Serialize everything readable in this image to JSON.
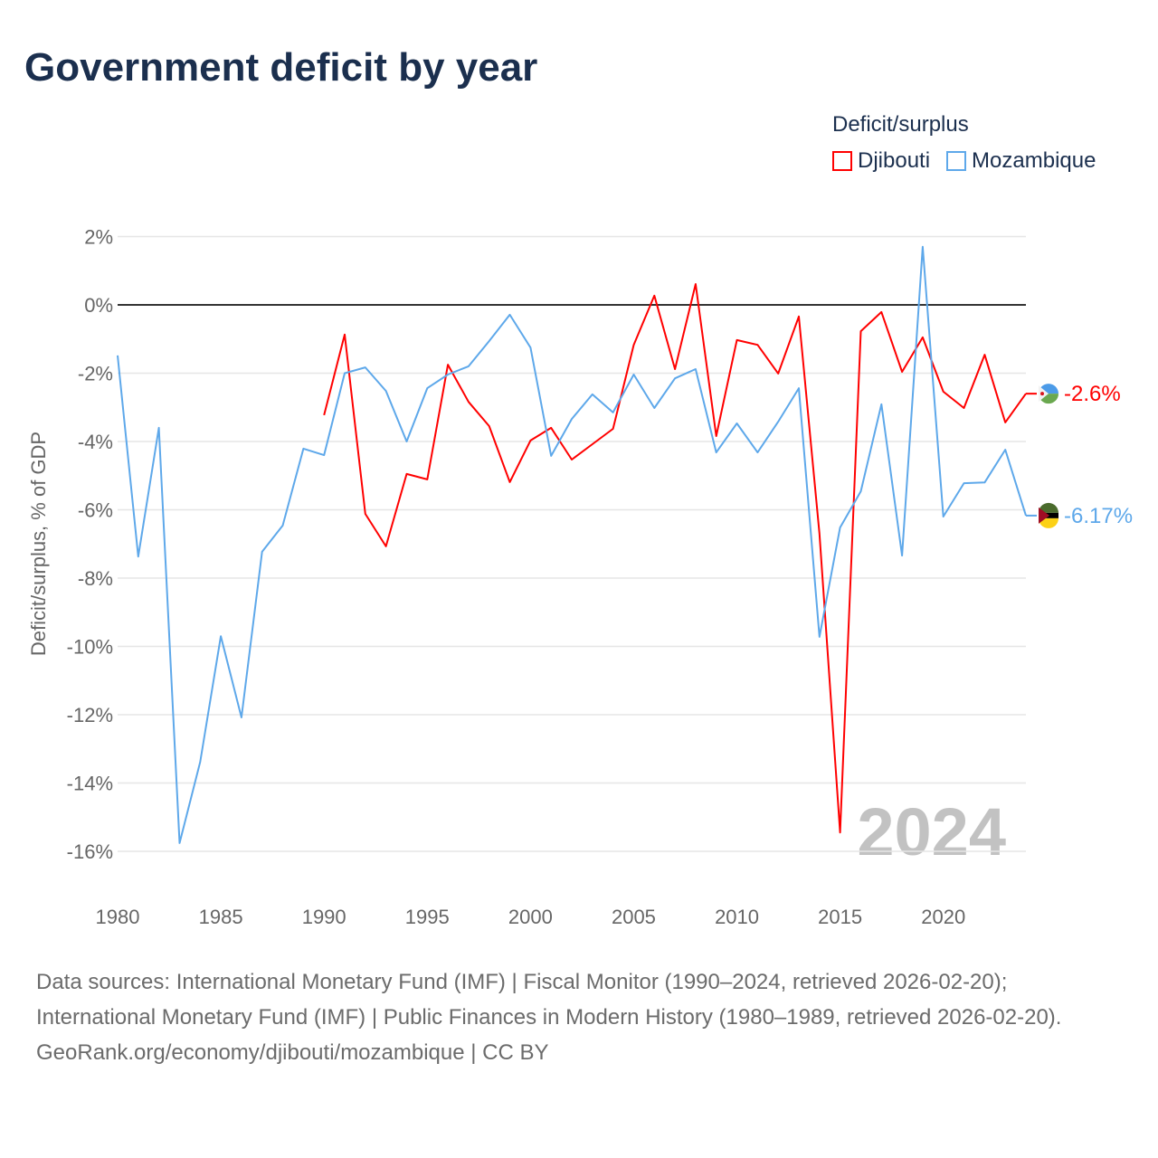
{
  "title": "Government deficit by year",
  "legend": {
    "title": "Deficit/surplus"
  },
  "footer": {
    "sources": "Data sources: International Monetary Fund (IMF) | Fiscal Monitor (1990–2024, retrieved 2026-02-20); International Monetary Fund (IMF) | Public Finances in Modern History (1980–1989, retrieved 2026-02-20).",
    "attribution": "GeoRank.org/economy/djibouti/mozambique | CC BY"
  },
  "chart_data": {
    "type": "line",
    "title": "Government deficit by year",
    "xlabel": "",
    "ylabel": "Deficit/surplus, % of GDP",
    "xlim": [
      1980,
      2024
    ],
    "ylim": [
      -17,
      2.5
    ],
    "yticks": [
      2,
      0,
      -2,
      -4,
      -6,
      -8,
      -10,
      -12,
      -14,
      -16
    ],
    "ytick_labels": [
      "2%",
      "0%",
      "-2%",
      "-4%",
      "-6%",
      "-8%",
      "-10%",
      "-12%",
      "-14%",
      "-16%"
    ],
    "xticks": [
      1980,
      1985,
      1990,
      1995,
      2000,
      2005,
      2010,
      2015,
      2020
    ],
    "xtick_labels": [
      "1980",
      "1985",
      "1990",
      "1995",
      "2000",
      "2005",
      "2010",
      "2015",
      "2020"
    ],
    "grid": true,
    "legend_position": "top-right",
    "watermark_year": "2024",
    "x": [
      1980,
      1981,
      1982,
      1983,
      1984,
      1985,
      1986,
      1987,
      1988,
      1989,
      1990,
      1991,
      1992,
      1993,
      1994,
      1995,
      1996,
      1997,
      1998,
      1999,
      2000,
      2001,
      2002,
      2003,
      2004,
      2005,
      2006,
      2007,
      2008,
      2009,
      2010,
      2011,
      2012,
      2013,
      2014,
      2015,
      2016,
      2017,
      2018,
      2019,
      2020,
      2021,
      2022,
      2023,
      2024
    ],
    "series": [
      {
        "name": "Djibouti",
        "color": "#ff0000",
        "end_label": "-2.6%",
        "values": [
          null,
          null,
          null,
          null,
          null,
          null,
          null,
          null,
          null,
          null,
          -3.23,
          -0.87,
          -6.12,
          -7.07,
          -4.95,
          -5.11,
          -1.75,
          -2.84,
          -3.55,
          -5.19,
          -3.97,
          -3.6,
          -4.53,
          -4.08,
          -3.63,
          -1.17,
          0.27,
          -1.88,
          0.61,
          -3.84,
          -1.03,
          -1.17,
          -2.01,
          -0.34,
          -6.7,
          -15.45,
          -0.77,
          -0.21,
          -1.96,
          -0.95,
          -2.54,
          -3.02,
          -1.46,
          -3.44,
          -2.6
        ]
      },
      {
        "name": "Mozambique",
        "color": "#5ea8ea",
        "end_label": "-6.17%",
        "values": [
          -1.48,
          -7.37,
          -3.6,
          -15.76,
          -13.38,
          -9.7,
          -12.08,
          -7.23,
          -6.46,
          -4.21,
          -4.4,
          -2.0,
          -1.83,
          -2.52,
          -4.0,
          -2.44,
          -2.04,
          -1.8,
          -1.06,
          -0.29,
          -1.25,
          -4.42,
          -3.34,
          -2.62,
          -3.15,
          -2.04,
          -3.02,
          -2.15,
          -1.88,
          -4.32,
          -3.47,
          -4.32,
          -3.42,
          -2.44,
          -9.72,
          -6.52,
          -5.46,
          -2.91,
          -7.34,
          1.7,
          -6.2,
          -5.22,
          -5.2,
          -4.24,
          -6.17
        ]
      }
    ]
  }
}
